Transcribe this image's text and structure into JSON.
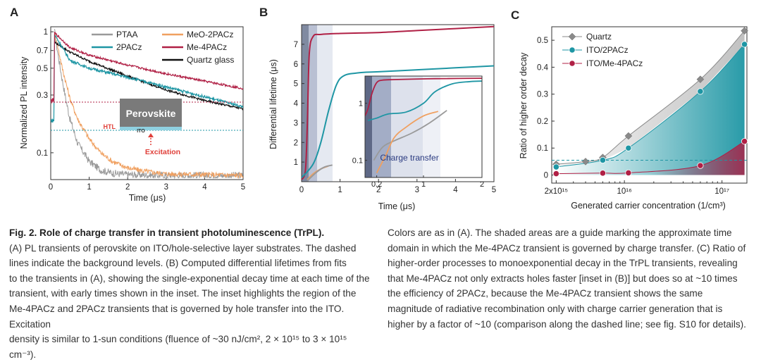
{
  "panel_a": {
    "letter": "A",
    "ylabel": "Normalized PL intensity",
    "xlabel": "Time (μs)",
    "inset_labels": {
      "perovskite": "Perovskite",
      "htl": "HTL",
      "ito": "ITO",
      "excitation": "Excitation"
    }
  },
  "panel_b": {
    "letter": "B",
    "ylabel": "Differential lifetime (μs)",
    "xlabel": "Time (μs)",
    "inset_label": "Charge transfer"
  },
  "panel_c": {
    "letter": "C",
    "ylabel": "Ratio of higher order decay",
    "xlabel": "Generated carrier concentration (1/cm³)"
  },
  "colors": {
    "PTAA": "#9a9a9a",
    "MeO-2PACz": "#f0a060",
    "2PACz": "#1e96a4",
    "Me-4PACz": "#b02045",
    "Quartz glass": "#111111",
    "Quartz": "#8a8a8a"
  },
  "chart_data": [
    {
      "panel": "A",
      "type": "line",
      "xlabel": "Time (μs)",
      "ylabel": "Normalized PL intensity",
      "xlim": [
        0,
        5
      ],
      "ylim": [
        0.06,
        1.1
      ],
      "yscale": "log",
      "xticks": [
        "0",
        "1",
        "2",
        "3",
        "4",
        "5"
      ],
      "yticks": [
        "1",
        "0.7",
        "0.5",
        "0.3",
        "0.1"
      ],
      "legend": [
        "PTAA",
        "MeO-2PACz",
        "2PACz",
        "Me-4PACz",
        "Quartz glass"
      ],
      "series": [
        {
          "name": "PTAA",
          "x": [
            0.1,
            0.2,
            0.3,
            0.4,
            0.5,
            0.7,
            1.0,
            1.3,
            1.6,
            2.0,
            3.0,
            5.0
          ],
          "y": [
            1.0,
            0.62,
            0.4,
            0.27,
            0.19,
            0.12,
            0.085,
            0.072,
            0.068,
            0.066,
            0.065,
            0.065
          ]
        },
        {
          "name": "MeO-2PACz",
          "x": [
            0.1,
            0.3,
            0.5,
            0.7,
            1.0,
            1.3,
            1.6,
            2.0,
            2.5,
            3.0,
            5.0
          ],
          "y": [
            1.0,
            0.5,
            0.28,
            0.19,
            0.13,
            0.1,
            0.085,
            0.075,
            0.07,
            0.067,
            0.065
          ]
        },
        {
          "name": "2PACz",
          "x": [
            0.1,
            0.5,
            1.0,
            2.0,
            3.0,
            4.0,
            5.0
          ],
          "y": [
            0.95,
            0.58,
            0.5,
            0.42,
            0.35,
            0.29,
            0.24
          ]
        },
        {
          "name": "Me-4PACz",
          "x": [
            0.1,
            0.5,
            1.0,
            2.0,
            3.0,
            4.0,
            5.0
          ],
          "y": [
            0.98,
            0.74,
            0.64,
            0.53,
            0.45,
            0.39,
            0.34
          ]
        },
        {
          "name": "Quartz glass",
          "x": [
            0.1,
            0.5,
            1.0,
            2.0,
            3.0,
            4.0,
            5.0
          ],
          "y": [
            0.82,
            0.68,
            0.57,
            0.43,
            0.33,
            0.27,
            0.23
          ]
        }
      ],
      "background_levels": {
        "Me-4PACz": 0.27,
        "2PACz": 0.185
      }
    },
    {
      "panel": "B",
      "type": "line",
      "xlabel": "Time (μs)",
      "ylabel": "Differential lifetime (μs)",
      "xlim": [
        0,
        5
      ],
      "ylim": [
        0,
        8
      ],
      "xticks": [
        "0",
        "1",
        "2",
        "3",
        "4",
        "5"
      ],
      "yticks": [
        "1",
        "2",
        "3",
        "4",
        "5",
        "6",
        "7"
      ],
      "series": [
        {
          "name": "Me-4PACz",
          "x": [
            0,
            0.1,
            0.15,
            0.2,
            0.3,
            0.5,
            1,
            2,
            3,
            4,
            5
          ],
          "y": [
            0.1,
            0.6,
            3.0,
            6.5,
            7.4,
            7.5,
            7.55,
            7.6,
            7.7,
            7.8,
            7.9
          ]
        },
        {
          "name": "2PACz",
          "x": [
            0,
            0.3,
            0.5,
            0.7,
            0.9,
            1.1,
            1.5,
            2,
            3,
            4,
            5
          ],
          "y": [
            0.2,
            0.9,
            2.0,
            3.6,
            4.9,
            5.4,
            5.55,
            5.6,
            5.7,
            5.8,
            5.9
          ]
        },
        {
          "name": "MeO-2PACz",
          "x": [
            0.15,
            0.3,
            0.5,
            0.7
          ],
          "y": [
            0.1,
            0.4,
            0.65,
            0.8
          ]
        },
        {
          "name": "PTAA",
          "x": [
            0.15,
            0.4,
            0.6,
            0.8
          ],
          "y": [
            0.05,
            0.5,
            0.75,
            0.85
          ]
        }
      ],
      "inset": {
        "xlim": [
          0,
          2
        ],
        "ylim": [
          0.05,
          3
        ],
        "yscale": "log",
        "xticks": [
          "0.2",
          "1",
          "2"
        ],
        "yticks": [
          "1",
          "0.1"
        ],
        "label": "Charge transfer"
      }
    },
    {
      "panel": "C",
      "type": "scatter",
      "xlabel": "Generated carrier concentration (1/cm³)",
      "ylabel": "Ratio of higher order decay",
      "xscale": "log",
      "xlim": [
        1800000000000000.0,
        1.8e+17
      ],
      "ylim": [
        -0.03,
        0.55
      ],
      "xticks": [
        "2x10¹⁵",
        "10¹⁶",
        "10¹⁷"
      ],
      "yticks": [
        "0",
        "0.1",
        "0.2",
        "0.3",
        "0.4",
        "0.5"
      ],
      "legend": [
        "Quartz",
        "ITO/2PACz",
        "ITO/Me-4PACz"
      ],
      "series": [
        {
          "name": "Quartz",
          "marker": "diamond",
          "x": [
            2000000000000000.0,
            4000000000000000.0,
            6000000000000000.0,
            1.1e+16,
            6e+16,
            1.7e+17
          ],
          "y": [
            0.04,
            0.05,
            0.065,
            0.145,
            0.355,
            0.535
          ]
        },
        {
          "name": "ITO/2PACz",
          "marker": "circle",
          "x": [
            2000000000000000.0,
            6000000000000000.0,
            1.1e+16,
            6e+16,
            1.7e+17
          ],
          "y": [
            0.03,
            0.055,
            0.1,
            0.31,
            0.485
          ]
        },
        {
          "name": "ITO/Me-4PACz",
          "marker": "circle",
          "x": [
            2000000000000000.0,
            6000000000000000.0,
            1.1e+16,
            6e+16,
            1.7e+17
          ],
          "y": [
            0.005,
            0.007,
            0.008,
            0.035,
            0.125
          ]
        }
      ],
      "dashed_line_y": 0.055
    }
  ],
  "caption": {
    "title": "Fig. 2. Role of charge transfer in transient photoluminescence (TrPL).",
    "left_lines": [
      "(A) PL transients of perovskite on ITO/hole-selective layer substrates. The dashed",
      "lines indicate the background levels. (B) Computed differential lifetimes from fits",
      "to the transients in (A), showing the single-exponential decay time at each time of the",
      "transient, with early times shown in the inset. The inset highlights the region of the",
      "Me-4PACz and 2PACz transients that is governed by hole transfer into the ITO. Excitation",
      "density is similar to 1-sun conditions (fluence of ~30 nJ/cm², 2 × 10¹⁵ to 3 × 10¹⁵ cm⁻³)."
    ],
    "right_lines": [
      "Colors are as in (A). The shaded areas are a guide marking the approximate time",
      "domain in which the Me-4PACz transient is governed by charge transfer. (C) Ratio of",
      "higher-order processes to monoexponential decay in the TrPL transients, revealing",
      "that Me-4PACz not only extracts holes faster [inset in (B)] but does so at ~10 times",
      "the efficiency of 2PACz, because the Me-4PACz transient shows the same",
      "magnitude of radiative recombination only with charge carrier generation that is",
      "higher by a factor of ~10 (comparison along the dashed line; see fig. S10 for details)."
    ]
  }
}
